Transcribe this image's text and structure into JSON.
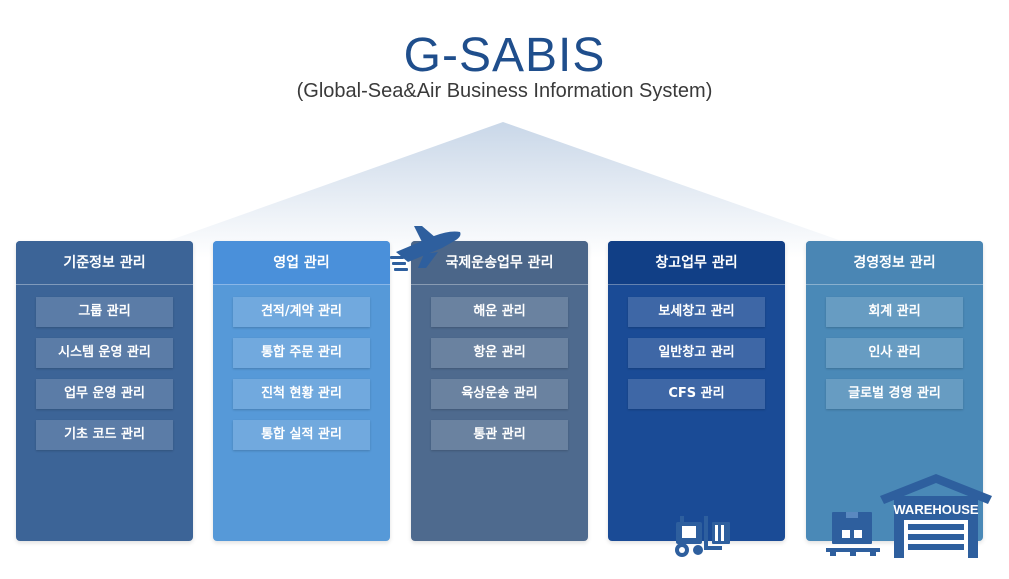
{
  "header": {
    "title": "G-SABIS",
    "subtitle": "(Global-Sea&Air Business Information System)"
  },
  "columns": [
    {
      "title": "기준정보 관리",
      "items": [
        "그룹 관리",
        "시스템 운영 관리",
        "업무 운영 관리",
        "기초 코드 관리"
      ]
    },
    {
      "title": "영업 관리",
      "items": [
        "견적/계약 관리",
        "통합 주문 관리",
        "진척 현황 관리",
        "통합 실적 관리"
      ]
    },
    {
      "title": "국제운송업무 관리",
      "items": [
        "해운 관리",
        "항운 관리",
        "육상운송 관리",
        "통관 관리"
      ]
    },
    {
      "title": "창고업무 관리",
      "items": [
        "보세창고 관리",
        "일반창고 관리",
        "CFS 관리"
      ]
    },
    {
      "title": "경영정보 관리",
      "items": [
        "회계 관리",
        "인사 관리",
        "글로벌 경영 관리"
      ]
    }
  ],
  "icons": {
    "airplane": "airplane-icon",
    "forklift": "forklift-icon",
    "boxes": "boxes-icon",
    "warehouse": "warehouse-icon",
    "warehouse_label": "WAREHOUSE"
  },
  "colors": {
    "title": "#1f4e8c",
    "col1": "#3c6497",
    "col2": "#5699d8",
    "col3": "#4e6a8e",
    "col4": "#1a4b96",
    "col5": "#4a89b7"
  }
}
